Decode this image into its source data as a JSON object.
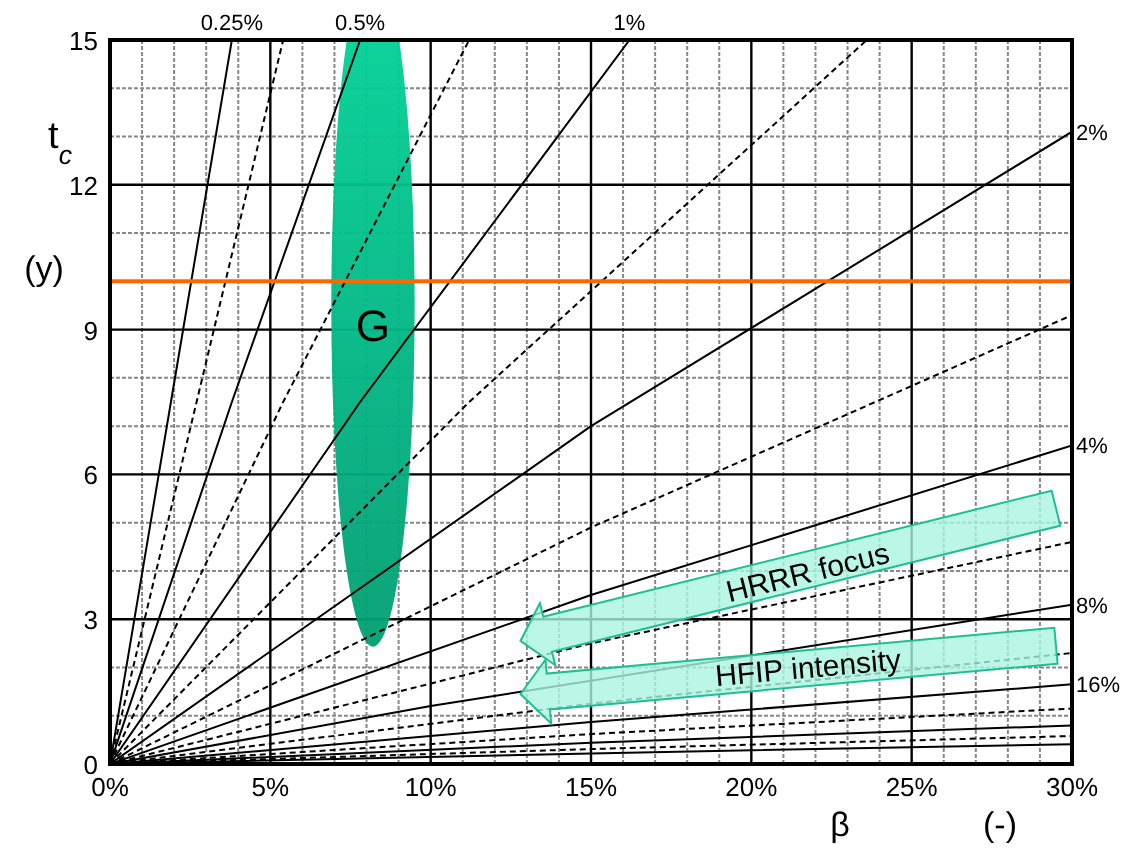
{
  "chart_data": {
    "type": "line",
    "xlabel": "β (-)",
    "ylabel": "t$_{c}$ (y)",
    "xlim": [
      0,
      30
    ],
    "ylim": [
      0,
      15
    ],
    "xticks": [
      {
        "value": 0,
        "label": "0%"
      },
      {
        "value": 5,
        "label": "5%"
      },
      {
        "value": 10,
        "label": "10%"
      },
      {
        "value": 15,
        "label": "15%"
      },
      {
        "value": 20,
        "label": "20%"
      },
      {
        "value": 25,
        "label": "25%"
      },
      {
        "value": 30,
        "label": "30%"
      }
    ],
    "yticks": [
      0,
      3,
      6,
      9,
      12,
      15
    ],
    "grid": true,
    "marker": "none",
    "series": [
      {
        "name": "0.25%",
        "color": "#000000",
        "line_style": "solid",
        "x": [
          0,
          1.9,
          3.8
        ],
        "values": [
          0,
          7.5,
          15
        ]
      },
      {
        "color": "#000000",
        "line_style": "dashed",
        "x": [
          0,
          2.7,
          5.4
        ],
        "values": [
          0,
          7.5,
          15
        ]
      },
      {
        "name": "0.5%",
        "color": "#000000",
        "line_style": "solid",
        "x": [
          0,
          3.8,
          7.8
        ],
        "values": [
          0,
          7.5,
          15
        ]
      },
      {
        "color": "#000000",
        "line_style": "dashed",
        "x": [
          0,
          5.4,
          11.2
        ],
        "values": [
          0,
          7.5,
          15
        ]
      },
      {
        "name": "1%",
        "color": "#000000",
        "line_style": "solid",
        "x": [
          0,
          7.8,
          16.2
        ],
        "values": [
          0,
          7.5,
          15
        ]
      },
      {
        "color": "#000000",
        "line_style": "dashed",
        "x": [
          0,
          11.2,
          23.6
        ],
        "values": [
          0,
          7.5,
          15
        ]
      },
      {
        "name": "2%",
        "color": "#000000",
        "line_style": "solid",
        "x": [
          0,
          15,
          30
        ],
        "values": [
          0,
          7.0,
          13.1
        ]
      },
      {
        "color": "#000000",
        "line_style": "dashed",
        "x": [
          0,
          15,
          30
        ],
        "values": [
          0,
          4.9,
          9.3
        ]
      },
      {
        "name": "4%",
        "color": "#000000",
        "line_style": "solid",
        "x": [
          0,
          15,
          30
        ],
        "values": [
          0,
          3.5,
          6.6
        ]
      },
      {
        "color": "#000000",
        "line_style": "dashed",
        "x": [
          0,
          15,
          30
        ],
        "values": [
          0,
          2.5,
          4.6
        ]
      },
      {
        "name": "8%",
        "color": "#000000",
        "line_style": "solid",
        "x": [
          0,
          10,
          30
        ],
        "values": [
          0,
          1.2,
          3.3
        ]
      },
      {
        "color": "#000000",
        "line_style": "dashed",
        "x": [
          0,
          15,
          30
        ],
        "values": [
          0,
          1.25,
          2.3
        ]
      },
      {
        "name": "16%",
        "color": "#000000",
        "line_style": "solid",
        "x": [
          0,
          15,
          30
        ],
        "values": [
          0,
          0.87,
          1.65
        ]
      },
      {
        "color": "#000000",
        "line_style": "dashed",
        "x": [
          0,
          15,
          30
        ],
        "values": [
          0,
          0.62,
          1.15
        ]
      },
      {
        "color": "#000000",
        "line_style": "solid",
        "x": [
          0,
          15,
          30
        ],
        "values": [
          0,
          0.44,
          0.8
        ]
      },
      {
        "color": "#000000",
        "line_style": "dashed",
        "x": [
          0,
          15,
          30
        ],
        "values": [
          0,
          0.31,
          0.58
        ]
      },
      {
        "color": "#000000",
        "line_style": "solid",
        "x": [
          0,
          15,
          30
        ],
        "values": [
          0,
          0.22,
          0.41
        ]
      }
    ],
    "ref_lines": [
      {
        "axis": "y",
        "value": 10,
        "color": "#ff6600"
      }
    ],
    "annotations": [
      "G",
      "HRRR focus",
      "HFIP intensity"
    ]
  }
}
